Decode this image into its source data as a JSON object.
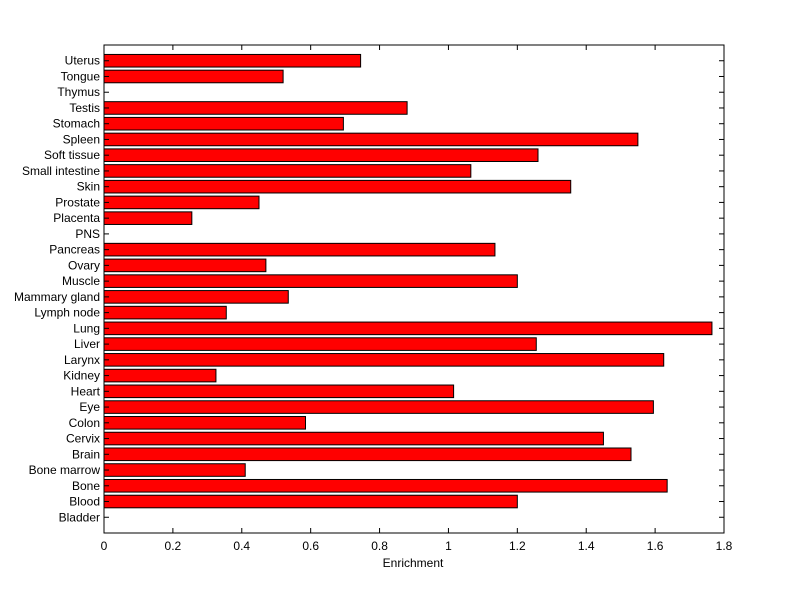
{
  "chart_data": {
    "type": "bar",
    "orientation": "horizontal",
    "title": "",
    "xlabel": "Enrichment",
    "ylabel": "",
    "xlim": [
      0,
      1.8
    ],
    "x_ticks": [
      "0",
      "0.2",
      "0.4",
      "0.6",
      "0.8",
      "1",
      "1.2",
      "1.4",
      "1.6",
      "1.8"
    ],
    "grid": false,
    "bar_color": "#ff0000",
    "categories": [
      "Bladder",
      "Blood",
      "Bone",
      "Bone marrow",
      "Brain",
      "Cervix",
      "Colon",
      "Eye",
      "Heart",
      "Kidney",
      "Larynx",
      "Liver",
      "Lung",
      "Lymph node",
      "Mammary gland",
      "Muscle",
      "Ovary",
      "Pancreas",
      "PNS",
      "Placenta",
      "Prostate",
      "Skin",
      "Small intestine",
      "Soft tissue",
      "Spleen",
      "Stomach",
      "Testis",
      "Thymus",
      "Tongue",
      "Uterus"
    ],
    "values": [
      0,
      1.2,
      1.635,
      0.41,
      1.53,
      1.45,
      0.585,
      1.595,
      1.015,
      0.325,
      1.625,
      1.255,
      1.765,
      0.355,
      0.535,
      1.2,
      0.47,
      1.135,
      0,
      0.255,
      0.45,
      1.355,
      1.065,
      1.26,
      1.55,
      0.695,
      0.88,
      0,
      0.52,
      0.745
    ]
  }
}
